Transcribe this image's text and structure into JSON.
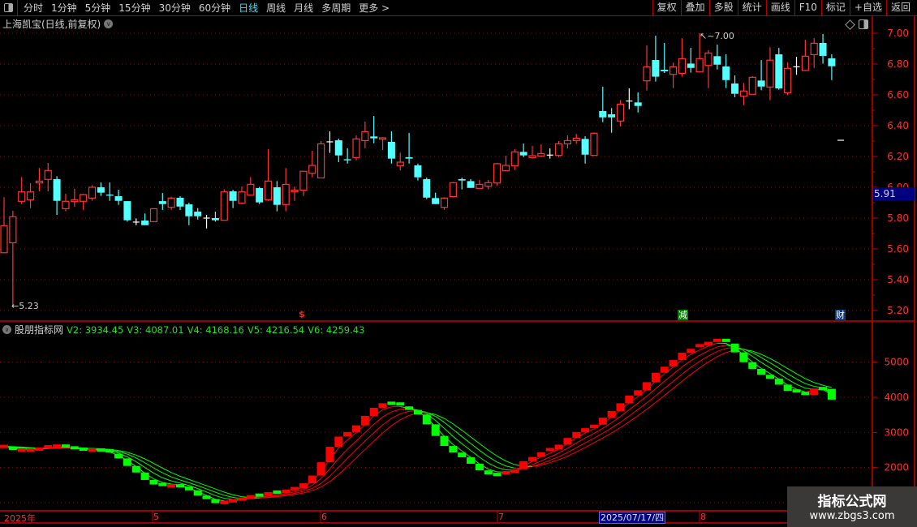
{
  "toolbar": {
    "periods": [
      "分时",
      "1分钟",
      "5分钟",
      "15分钟",
      "30分钟",
      "60分钟",
      "日线",
      "周线",
      "月线",
      "多周期",
      "更多 >"
    ],
    "active_period": "日线",
    "buttons": [
      "复权",
      "叠加",
      "多股",
      "统计",
      "画线",
      "F10",
      "标记",
      "+自选",
      "返回"
    ]
  },
  "main_title": "上海凯宝(日线,前复权)",
  "indicator": {
    "name": "股朋指标网",
    "legend": [
      "V2: 3934.45",
      "V3: 4087.01",
      "V4: 4168.16",
      "V5: 4216.54",
      "V6: 4259.43"
    ]
  },
  "price_highlight": "5.91",
  "annotations": {
    "high": "7.00",
    "low": "5.23"
  },
  "markers": {
    "dollar": "$",
    "jian": "减",
    "cai": "财"
  },
  "date_axis": {
    "labels": [
      "2025年",
      "5",
      "6",
      "7",
      "8"
    ],
    "highlight": "2025/07/17/四"
  },
  "watermark": {
    "line1": "指标公式网",
    "line2": "www.zbgs3.com"
  },
  "colors": {
    "up": "#ff3333",
    "down": "#54ffff",
    "doji": "#ffffff",
    "ind_up": "#ff0000",
    "ind_down": "#00ff00",
    "axis": "#cc0000"
  },
  "chart_data": [
    {
      "type": "candlestick",
      "ylim": [
        5.15,
        7.08
      ],
      "yticks": [
        "7.00",
        "6.80",
        "6.60",
        "6.40",
        "6.20",
        "6.00",
        "5.80",
        "5.60",
        "5.40",
        "5.20"
      ],
      "grid": true,
      "ohlc": [
        [
          5.575,
          5.935,
          5.575,
          5.751
        ],
        [
          5.64,
          5.847,
          5.23,
          5.809
        ],
        [
          5.909,
          6.067,
          5.891,
          5.97
        ],
        [
          5.918,
          6.026,
          5.865,
          5.97
        ],
        [
          6.028,
          6.125,
          5.974,
          6.04
        ],
        [
          6.051,
          6.158,
          5.974,
          6.109
        ],
        [
          6.053,
          6.072,
          5.821,
          5.912
        ],
        [
          5.861,
          5.958,
          5.844,
          5.909
        ],
        [
          5.907,
          5.99,
          5.874,
          5.919
        ],
        [
          5.909,
          5.958,
          5.853,
          5.953
        ],
        [
          5.93,
          6.014,
          5.912,
          6.0
        ],
        [
          6.0,
          6.032,
          5.944,
          5.965
        ],
        [
          5.953,
          6.032,
          5.912,
          5.946
        ],
        [
          5.942,
          5.984,
          5.886,
          5.912
        ],
        [
          5.91,
          5.91,
          5.777,
          5.786
        ],
        [
          5.774,
          5.798,
          5.754,
          5.774
        ],
        [
          5.784,
          5.83,
          5.754,
          5.754
        ],
        [
          5.777,
          5.861,
          5.774,
          5.861
        ],
        [
          5.91,
          5.963,
          5.853,
          5.891
        ],
        [
          5.87,
          5.939,
          5.853,
          5.93
        ],
        [
          5.932,
          5.942,
          5.853,
          5.875
        ],
        [
          5.889,
          5.9,
          5.754,
          5.812
        ],
        [
          5.842,
          5.865,
          5.791,
          5.812
        ],
        [
          5.8,
          5.821,
          5.733,
          5.8
        ],
        [
          5.8,
          5.842,
          5.777,
          5.786
        ],
        [
          5.786,
          5.988,
          5.786,
          5.97
        ],
        [
          5.974,
          5.984,
          5.865,
          5.912
        ],
        [
          5.897,
          6.005,
          5.891,
          5.97
        ],
        [
          5.949,
          6.067,
          5.944,
          6.019
        ],
        [
          5.995,
          6.002,
          5.891,
          5.902
        ],
        [
          5.918,
          6.247,
          5.912,
          6.04
        ],
        [
          6.0,
          6.04,
          5.844,
          5.886
        ],
        [
          5.888,
          6.125,
          5.844,
          6.019
        ],
        [
          5.97,
          6.005,
          5.912,
          5.982
        ],
        [
          5.982,
          6.104,
          5.944,
          6.104
        ],
        [
          6.091,
          6.237,
          6.065,
          6.142
        ],
        [
          6.061,
          6.3,
          6.061,
          6.282
        ],
        [
          6.295,
          6.363,
          6.223,
          6.295
        ],
        [
          6.305,
          6.316,
          6.163,
          6.207
        ],
        [
          6.182,
          6.253,
          6.154,
          6.175
        ],
        [
          6.193,
          6.337,
          6.175,
          6.314
        ],
        [
          6.303,
          6.426,
          6.254,
          6.361
        ],
        [
          6.33,
          6.463,
          6.286,
          6.318
        ],
        [
          6.312,
          6.325,
          6.242,
          6.321
        ],
        [
          6.295,
          6.363,
          6.154,
          6.186
        ],
        [
          6.14,
          6.225,
          6.11,
          6.163
        ],
        [
          6.195,
          6.353,
          6.154,
          6.186
        ],
        [
          6.142,
          6.154,
          6.044,
          6.065
        ],
        [
          6.053,
          6.063,
          5.923,
          5.933
        ],
        [
          5.93,
          5.965,
          5.891,
          5.891
        ],
        [
          5.87,
          5.935,
          5.854,
          5.93
        ],
        [
          5.939,
          6.035,
          5.933,
          6.03
        ],
        [
          6.053,
          6.063,
          5.986,
          6.044
        ],
        [
          6.04,
          6.053,
          5.996,
          5.996
        ],
        [
          5.993,
          6.047,
          5.993,
          6.019
        ],
        [
          6.007,
          6.047,
          5.986,
          6.03
        ],
        [
          6.028,
          6.158,
          6.012,
          6.153
        ],
        [
          6.107,
          6.205,
          6.107,
          6.142
        ],
        [
          6.14,
          6.247,
          6.112,
          6.23
        ],
        [
          6.23,
          6.284,
          6.196,
          6.207
        ],
        [
          6.193,
          6.268,
          6.186,
          6.205
        ],
        [
          6.203,
          6.279,
          6.196,
          6.219
        ],
        [
          6.209,
          6.253,
          6.186,
          6.209
        ],
        [
          6.207,
          6.3,
          6.195,
          6.282
        ],
        [
          6.282,
          6.337,
          6.253,
          6.303
        ],
        [
          6.303,
          6.347,
          6.284,
          6.319
        ],
        [
          6.314,
          6.332,
          6.154,
          6.212
        ],
        [
          6.207,
          6.356,
          6.207,
          6.351
        ],
        [
          6.495,
          6.653,
          6.423,
          6.454
        ],
        [
          6.474,
          6.514,
          6.354,
          6.454
        ],
        [
          6.43,
          6.567,
          6.395,
          6.54
        ],
        [
          6.56,
          6.642,
          6.507,
          6.56
        ],
        [
          6.551,
          6.616,
          6.486,
          6.528
        ],
        [
          6.691,
          6.921,
          6.628,
          6.782
        ],
        [
          6.826,
          6.984,
          6.686,
          6.718
        ],
        [
          6.763,
          6.937,
          6.742,
          6.753
        ],
        [
          6.733,
          6.809,
          6.644,
          6.782
        ],
        [
          6.74,
          6.968,
          6.718,
          6.835
        ],
        [
          6.803,
          6.905,
          6.744,
          6.775
        ],
        [
          6.749,
          7.0,
          6.749,
          6.835
        ],
        [
          6.791,
          6.89,
          6.644,
          6.872
        ],
        [
          6.851,
          6.926,
          6.765,
          6.796
        ],
        [
          6.784,
          6.863,
          6.644,
          6.696
        ],
        [
          6.674,
          6.726,
          6.584,
          6.607
        ],
        [
          6.591,
          6.677,
          6.533,
          6.625
        ],
        [
          6.604,
          6.721,
          6.604,
          6.714
        ],
        [
          6.693,
          6.826,
          6.63,
          6.654
        ],
        [
          6.651,
          6.909,
          6.565,
          6.825
        ],
        [
          6.863,
          6.905,
          6.633,
          6.642
        ],
        [
          6.614,
          6.812,
          6.598,
          6.772
        ],
        [
          6.782,
          6.847,
          6.73,
          6.782
        ],
        [
          6.758,
          6.958,
          6.754,
          6.851
        ],
        [
          6.861,
          6.968,
          6.775,
          6.935
        ],
        [
          6.937,
          6.995,
          6.803,
          6.853
        ],
        [
          6.837,
          6.863,
          6.696,
          6.786
        ]
      ]
    },
    {
      "type": "line",
      "ylim": [
        900,
        6100
      ],
      "yticks": [
        "5000",
        "4000",
        "3000",
        "2000"
      ],
      "grid": true,
      "series": [
        {
          "name": "V2",
          "values": [
            2600,
            2500,
            2500,
            2500,
            2520,
            2590,
            2610,
            2560,
            2520,
            2500,
            2500,
            2470,
            2390,
            2260,
            2045,
            1857,
            1645,
            1516,
            1477,
            1480,
            1455,
            1350,
            1200,
            1100,
            985,
            1000,
            1050,
            1100,
            1213,
            1200,
            1300,
            1290,
            1320,
            1400,
            1550,
            1770,
            2150,
            2590,
            2880,
            3010,
            3200,
            3470,
            3700,
            3830,
            3810,
            3740,
            3640,
            3510,
            3230,
            2900,
            2613,
            2425,
            2290,
            2107,
            1918,
            1804,
            1800,
            1850,
            1950,
            2180,
            2300,
            2430,
            2510,
            2650,
            2840,
            3010,
            3120,
            3220,
            3420,
            3610,
            3830,
            4050,
            4200,
            4430,
            4700,
            4870,
            5060,
            5270,
            5380,
            5470,
            5580,
            5620,
            5530,
            5280,
            5000,
            4810,
            4640,
            4530,
            4360,
            4180,
            4110,
            4070,
            4250,
            4240,
            3934.45
          ]
        }
      ]
    }
  ]
}
